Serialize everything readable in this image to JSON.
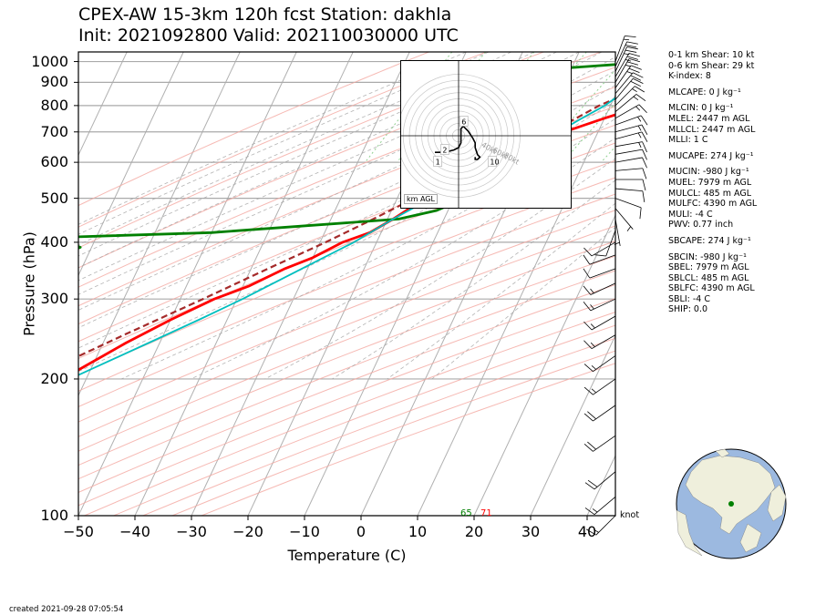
{
  "title": {
    "line1": "CPEX-AW 15-3km  120h fcst  Station: dakhla",
    "line2": "Init: 2021092800  Valid: 202110030000 UTC"
  },
  "axes": {
    "ylabel": "Pressure (hPa)",
    "xlabel": "Temperature (C)",
    "wind_unit": "knot"
  },
  "colors": {
    "temperature": "#ff0000",
    "dewpoint": "#008000",
    "wetbulb": "#00bfbf",
    "parcel": "#a52a2a",
    "isobar": "#aaaaaa",
    "dry_adiabat": "#f4a8a0",
    "moist_adiabat": "#a0a0a0",
    "mixing_ratio": "#8fd08f"
  },
  "chart_data": {
    "type": "line",
    "xlim": [
      -50,
      45
    ],
    "ylim": [
      1050,
      100
    ],
    "yscale": "log",
    "x_ticks": [
      "−50",
      "−40",
      "−30",
      "−20",
      "−10",
      "0",
      "10",
      "20",
      "30",
      "40"
    ],
    "y_ticks": [
      {
        "p": 100,
        "label": "100"
      },
      {
        "p": 200,
        "label": "200"
      },
      {
        "p": 300,
        "label": "300"
      },
      {
        "p": 400,
        "label": "400"
      },
      {
        "p": 500,
        "label": "500"
      },
      {
        "p": 600,
        "label": "600"
      },
      {
        "p": 700,
        "label": "700"
      },
      {
        "p": 800,
        "label": "800"
      },
      {
        "p": 900,
        "label": "900"
      },
      {
        "p": 1000,
        "label": "1000"
      }
    ],
    "surface_labels": {
      "dewpoint": "65",
      "temperature": "71"
    },
    "series": [
      {
        "key": "temperature",
        "points": [
          [
            1012,
            22
          ],
          [
            1000,
            21
          ],
          [
            990,
            28
          ],
          [
            960,
            32
          ],
          [
            940,
            33
          ],
          [
            900,
            28
          ],
          [
            850,
            23
          ],
          [
            800,
            16
          ],
          [
            750,
            10
          ],
          [
            700,
            4
          ],
          [
            650,
            -1
          ],
          [
            600,
            -5
          ],
          [
            550,
            -10
          ],
          [
            500,
            -15
          ],
          [
            450,
            -19
          ],
          [
            420,
            -22
          ],
          [
            400,
            -26
          ],
          [
            370,
            -30
          ],
          [
            350,
            -34
          ],
          [
            320,
            -39
          ],
          [
            300,
            -44
          ],
          [
            270,
            -50
          ],
          [
            240,
            -56
          ],
          [
            210,
            -62
          ],
          [
            190,
            -67
          ],
          [
            170,
            -71
          ],
          [
            150,
            -74
          ],
          [
            130,
            -77
          ],
          [
            110,
            -80
          ],
          [
            100,
            -83
          ]
        ]
      },
      {
        "key": "dewpoint",
        "points": [
          [
            1012,
            19
          ],
          [
            1000,
            18
          ],
          [
            990,
            10
          ],
          [
            960,
            -5
          ],
          [
            930,
            -20
          ],
          [
            900,
            -22
          ],
          [
            870,
            -22
          ],
          [
            830,
            -21
          ],
          [
            800,
            -18
          ],
          [
            760,
            -17
          ],
          [
            730,
            -18
          ],
          [
            700,
            -17
          ],
          [
            680,
            -15
          ],
          [
            650,
            -11
          ],
          [
            620,
            -8
          ],
          [
            600,
            -6
          ],
          [
            570,
            -5
          ],
          [
            540,
            -6
          ],
          [
            500,
            -8
          ],
          [
            470,
            -12
          ],
          [
            450,
            -18
          ],
          [
            420,
            -50
          ],
          [
            410,
            -77
          ],
          [
            390,
            -72
          ],
          [
            370,
            -76
          ],
          [
            350,
            -74
          ],
          [
            300,
            -76
          ],
          [
            270,
            -78
          ],
          [
            240,
            -80
          ],
          [
            210,
            -84
          ],
          [
            200,
            -86
          ],
          [
            180,
            -86
          ],
          [
            160,
            -88
          ],
          [
            140,
            -92
          ],
          [
            120,
            -95
          ],
          [
            100,
            -100
          ]
        ]
      },
      {
        "key": "wetbulb",
        "points": [
          [
            1012,
            19
          ],
          [
            1000,
            19
          ],
          [
            980,
            17
          ],
          [
            950,
            15
          ],
          [
            900,
            13
          ],
          [
            850,
            11
          ],
          [
            800,
            9
          ],
          [
            750,
            6
          ],
          [
            700,
            3
          ],
          [
            650,
            0
          ],
          [
            600,
            -5
          ],
          [
            550,
            -9
          ],
          [
            500,
            -14
          ],
          [
            450,
            -19
          ],
          [
            400,
            -24
          ],
          [
            350,
            -31
          ],
          [
            300,
            -39
          ],
          [
            270,
            -45
          ],
          [
            240,
            -52
          ],
          [
            210,
            -60
          ],
          [
            190,
            -66
          ],
          [
            170,
            -71
          ],
          [
            150,
            -74
          ],
          [
            130,
            -77
          ],
          [
            110,
            -80
          ],
          [
            100,
            -83
          ]
        ]
      }
    ],
    "parcel_profile": [
      [
        1012,
        22
      ],
      [
        980,
        21
      ],
      [
        960,
        19.5
      ],
      [
        900,
        15.5
      ],
      [
        850,
        12
      ],
      [
        800,
        8
      ],
      [
        750,
        5
      ],
      [
        700,
        1.5
      ],
      [
        650,
        -2.5
      ],
      [
        600,
        -7
      ],
      [
        550,
        -11.5
      ],
      [
        500,
        -17
      ],
      [
        450,
        -22.5
      ],
      [
        400,
        -29
      ],
      [
        350,
        -37
      ],
      [
        300,
        -46
      ],
      [
        250,
        -57
      ],
      [
        200,
        -70
      ],
      [
        150,
        -86
      ],
      [
        100,
        -108
      ]
    ],
    "isobars": [
      100,
      200,
      300,
      400,
      500,
      600,
      700,
      800,
      900,
      1000
    ],
    "wind_barbs": [
      {
        "p": 1000,
        "dir": 20,
        "spd": 15
      },
      {
        "p": 975,
        "dir": 25,
        "spd": 20
      },
      {
        "p": 950,
        "dir": 25,
        "spd": 25
      },
      {
        "p": 925,
        "dir": 30,
        "spd": 25
      },
      {
        "p": 900,
        "dir": 30,
        "spd": 25
      },
      {
        "p": 875,
        "dir": 35,
        "spd": 25
      },
      {
        "p": 850,
        "dir": 40,
        "spd": 20
      },
      {
        "p": 825,
        "dir": 40,
        "spd": 20
      },
      {
        "p": 800,
        "dir": 45,
        "spd": 15
      },
      {
        "p": 775,
        "dir": 50,
        "spd": 15
      },
      {
        "p": 750,
        "dir": 60,
        "spd": 15
      },
      {
        "p": 725,
        "dir": 70,
        "spd": 15
      },
      {
        "p": 700,
        "dir": 75,
        "spd": 15
      },
      {
        "p": 675,
        "dir": 75,
        "spd": 15
      },
      {
        "p": 650,
        "dir": 80,
        "spd": 15
      },
      {
        "p": 625,
        "dir": 80,
        "spd": 10
      },
      {
        "p": 600,
        "dir": 80,
        "spd": 10
      },
      {
        "p": 575,
        "dir": 85,
        "spd": 10
      },
      {
        "p": 550,
        "dir": 90,
        "spd": 10
      },
      {
        "p": 525,
        "dir": 95,
        "spd": 10
      },
      {
        "p": 500,
        "dir": 110,
        "spd": 10
      },
      {
        "p": 475,
        "dir": 140,
        "spd": 5
      },
      {
        "p": 450,
        "dir": 170,
        "spd": 5
      },
      {
        "p": 425,
        "dir": 200,
        "spd": 10
      },
      {
        "p": 400,
        "dir": 240,
        "spd": 10
      },
      {
        "p": 375,
        "dir": 250,
        "spd": 10
      },
      {
        "p": 350,
        "dir": 250,
        "spd": 10
      },
      {
        "p": 325,
        "dir": 245,
        "spd": 15
      },
      {
        "p": 300,
        "dir": 245,
        "spd": 15
      },
      {
        "p": 275,
        "dir": 240,
        "spd": 15
      },
      {
        "p": 250,
        "dir": 240,
        "spd": 15
      },
      {
        "p": 225,
        "dir": 235,
        "spd": 15
      },
      {
        "p": 200,
        "dir": 235,
        "spd": 15
      },
      {
        "p": 175,
        "dir": 235,
        "spd": 20
      },
      {
        "p": 150,
        "dir": 235,
        "spd": 20
      },
      {
        "p": 125,
        "dir": 230,
        "spd": 20
      },
      {
        "p": 110,
        "dir": 230,
        "spd": 15
      },
      {
        "p": 100,
        "dir": 225,
        "spd": 15
      }
    ],
    "hodograph": {
      "rings_kt": [
        20,
        40,
        60,
        80
      ],
      "ring_labels": [
        "40kt",
        "60kt",
        "80kt"
      ],
      "units": "km AGL",
      "height_labels": [
        "1",
        "2",
        "6",
        "10"
      ],
      "trace": [
        [
          -10,
          -7
        ],
        [
          -6,
          -7
        ],
        [
          -2,
          -6
        ],
        [
          0,
          -5
        ],
        [
          1,
          -3
        ],
        [
          1,
          -1
        ],
        [
          1,
          1
        ],
        [
          1,
          3
        ],
        [
          2,
          4
        ],
        [
          4,
          2
        ],
        [
          6,
          -1
        ],
        [
          7,
          -3
        ],
        [
          7,
          -5
        ],
        [
          8,
          -8
        ],
        [
          9,
          -9
        ],
        [
          8,
          -10
        ],
        [
          7,
          -10
        ],
        [
          7,
          -9
        ]
      ]
    }
  },
  "indices": [
    {
      "text": "0-1 km Shear: 10 kt"
    },
    {
      "text": "0-6 km Shear: 29 kt"
    },
    {
      "text": "K-index: 8"
    },
    {
      "text": "MLCAPE: 0 J kg⁻¹"
    },
    {
      "text": "MLCIN: 0 J kg⁻¹"
    },
    {
      "text": "MLEL: 2447 m AGL"
    },
    {
      "text": "MLLCL: 2447 m AGL"
    },
    {
      "text": "MLLI: 1 C"
    },
    {
      "text": "MUCAPE: 274 J kg⁻¹"
    },
    {
      "text": "MUCIN: -980 J kg⁻¹"
    },
    {
      "text": "MUEL: 7979 m AGL"
    },
    {
      "text": "MULCL: 485 m AGL"
    },
    {
      "text": "MULFC: 4390 m AGL"
    },
    {
      "text": "MULI: -4 C"
    },
    {
      "text": "PWV: 0.77 inch"
    },
    {
      "text": "SBCAPE: 274 J kg⁻¹"
    },
    {
      "text": "SBCIN: -980 J kg⁻¹"
    },
    {
      "text": "SBEL: 7979 m AGL"
    },
    {
      "text": "SBLCL: 485 m AGL"
    },
    {
      "text": "SBLFC: 4390 m AGL"
    },
    {
      "text": "SBLI: -4 C"
    },
    {
      "text": "SHIP: 0.0"
    }
  ],
  "globe": {
    "ocean": "#9cb9e0",
    "land": "#efefdc",
    "marker": "#008000"
  },
  "footer": "created 2021-09-28 07:05:54"
}
